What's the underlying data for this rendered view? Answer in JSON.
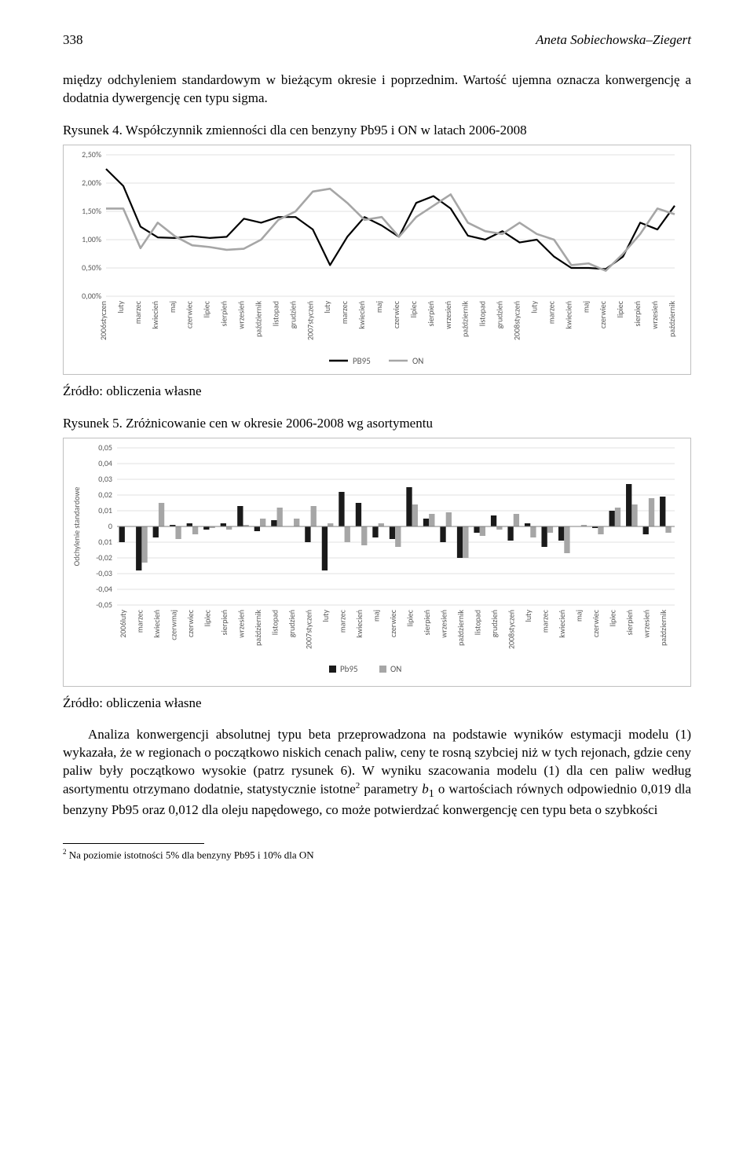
{
  "header": {
    "page_number": "338",
    "author": "Aneta Sobiechowska–Ziegert"
  },
  "para1": "między odchyleniem standardowym w bieżącym okresie i poprzednim. Wartość ujemna oznacza konwergencję a dodatnia dywergencję cen typu sigma.",
  "fig4": {
    "caption": "Rysunek 4. Współczynnik zmienności dla cen benzyny Pb95 i ON w latach 2006-2008",
    "source": "Źródło: obliczenia własne",
    "chart": {
      "type": "line",
      "background_color": "#ffffff",
      "border_color": "#bfbfbf",
      "grid_color": "#d9d9d9",
      "ylim": [
        0.0,
        2.5
      ],
      "ytick_step": 0.5,
      "yticks": [
        "0,00%",
        "0,50%",
        "1,00%",
        "1,50%",
        "2,00%",
        "2,50%"
      ],
      "x_labels": [
        "2006styczen",
        "luty",
        "marzec",
        "kwiecień",
        "maj",
        "czerwiec",
        "lipiec",
        "sierpień",
        "wrzesień",
        "październik",
        "listopad",
        "grudzień",
        "2007styczeń",
        "luty",
        "marzec",
        "kwiecień",
        "maj",
        "czerwiec",
        "lipiec",
        "sierpień",
        "wrzesień",
        "październik",
        "listopad",
        "grudzień",
        "2008styczeń",
        "luty",
        "marzec",
        "kwiecień",
        "maj",
        "czerwiec",
        "lipiec",
        "sierpień",
        "wrzesień",
        "październik"
      ],
      "series": [
        {
          "name": "PB95",
          "color": "#000000",
          "line_width": 2.2,
          "values": [
            2.25,
            1.95,
            1.23,
            1.04,
            1.03,
            1.06,
            1.03,
            1.05,
            1.37,
            1.3,
            1.4,
            1.4,
            1.18,
            0.55,
            1.05,
            1.4,
            1.25,
            1.05,
            1.65,
            1.77,
            1.55,
            1.07,
            1.0,
            1.15,
            0.95,
            1.0,
            0.7,
            0.5,
            0.5,
            0.48,
            0.7,
            1.3,
            1.18,
            1.6
          ]
        },
        {
          "name": "ON",
          "color": "#a6a6a6",
          "line_width": 2.6,
          "values": [
            1.55,
            1.55,
            0.85,
            1.3,
            1.06,
            0.9,
            0.87,
            0.82,
            0.84,
            1.0,
            1.35,
            1.5,
            1.85,
            1.9,
            1.65,
            1.35,
            1.4,
            1.05,
            1.4,
            1.6,
            1.8,
            1.3,
            1.15,
            1.1,
            1.3,
            1.1,
            1.0,
            0.55,
            0.58,
            0.45,
            0.75,
            1.1,
            1.55,
            1.45
          ]
        }
      ],
      "legend": {
        "items": [
          "PB95",
          "ON"
        ],
        "colors": [
          "#000000",
          "#a6a6a6"
        ]
      }
    }
  },
  "fig5": {
    "caption": "Rysunek 5. Zróżnicowanie cen w okresie 2006-2008 wg asortymentu",
    "source": "Źródło: obliczenia własne",
    "chart": {
      "type": "bar",
      "background_color": "#ffffff",
      "border_color": "#bfbfbf",
      "grid_color": "#d9d9d9",
      "y_axis_label": "Odchylenie standardowe",
      "ylim": [
        -0.05,
        0.05
      ],
      "ytick_step": 0.01,
      "yticks": [
        "0,05",
        "0,04",
        "0,03",
        "0,02",
        "0,01",
        "0",
        "0,01",
        "-0,02",
        "-0,03",
        "-0,04",
        "-0,05"
      ],
      "x_labels": [
        "2006luty",
        "marzec",
        "kwiecień",
        "czerwmaj",
        "czerwiec",
        "lipiec",
        "sierpień",
        "wrzesień",
        "październik",
        "listopad",
        "grudzień",
        "2007styczeń",
        "luty",
        "marzec",
        "kwiecień",
        "maj",
        "czerwiec",
        "lipiec",
        "sierpień",
        "wrzesień",
        "październik",
        "listopad",
        "grudzień",
        "2008styczeń",
        "luty",
        "marzec",
        "kwiecień",
        "maj",
        "czerwiec",
        "lipiec",
        "sierpień",
        "wrzesień",
        "październik"
      ],
      "series": [
        {
          "name": "Pb95",
          "color": "#1a1a1a",
          "values": [
            -0.01,
            -0.028,
            -0.007,
            0.001,
            0.002,
            -0.002,
            0.002,
            0.013,
            -0.003,
            0.004,
            0.0,
            -0.01,
            -0.028,
            0.022,
            0.015,
            -0.007,
            -0.008,
            0.025,
            0.005,
            -0.01,
            -0.02,
            -0.004,
            0.007,
            -0.009,
            0.002,
            -0.013,
            -0.009,
            0.0,
            -0.001,
            0.01,
            0.027,
            -0.005,
            0.019
          ]
        },
        {
          "name": "ON",
          "color": "#a6a6a6",
          "values": [
            0.0,
            -0.023,
            0.015,
            -0.008,
            -0.005,
            -0.001,
            -0.002,
            0.001,
            0.005,
            0.012,
            0.005,
            0.013,
            0.002,
            -0.01,
            -0.012,
            0.002,
            -0.013,
            0.014,
            0.008,
            0.009,
            -0.02,
            -0.006,
            -0.002,
            0.008,
            -0.007,
            -0.004,
            -0.017,
            0.001,
            -0.005,
            0.012,
            0.014,
            0.018,
            -0.004
          ]
        }
      ],
      "legend": {
        "items": [
          "Pb95",
          "ON"
        ],
        "colors": [
          "#1a1a1a",
          "#a6a6a6"
        ]
      }
    }
  },
  "para2_a": "Analiza konwergencji absolutnej typu beta przeprowadzona na podstawie wyników estymacji modelu (1) wykazała, że w regionach o początkowo niskich cenach paliw, ceny te rosną szybciej niż w tych rejonach, gdzie ceny paliw były początkowo wysokie (patrz rysunek 6). W wyniku szacowania modelu (1) dla cen paliw według asortymentu otrzymano dodatnie, statystycznie istotne",
  "para2_ref": "2",
  "para2_b": " parametry ",
  "para2_sym": "b",
  "para2_sub": "1",
  "para2_c": " o wartościach równych odpowiednio 0,019 dla benzyny Pb95 oraz 0,012 dla oleju napędowego, co może potwierdzać konwergencję cen typu beta o szybkości",
  "footnote": {
    "num": "2",
    "text": " Na poziomie istotności 5% dla benzyny Pb95 i 10% dla ON"
  }
}
